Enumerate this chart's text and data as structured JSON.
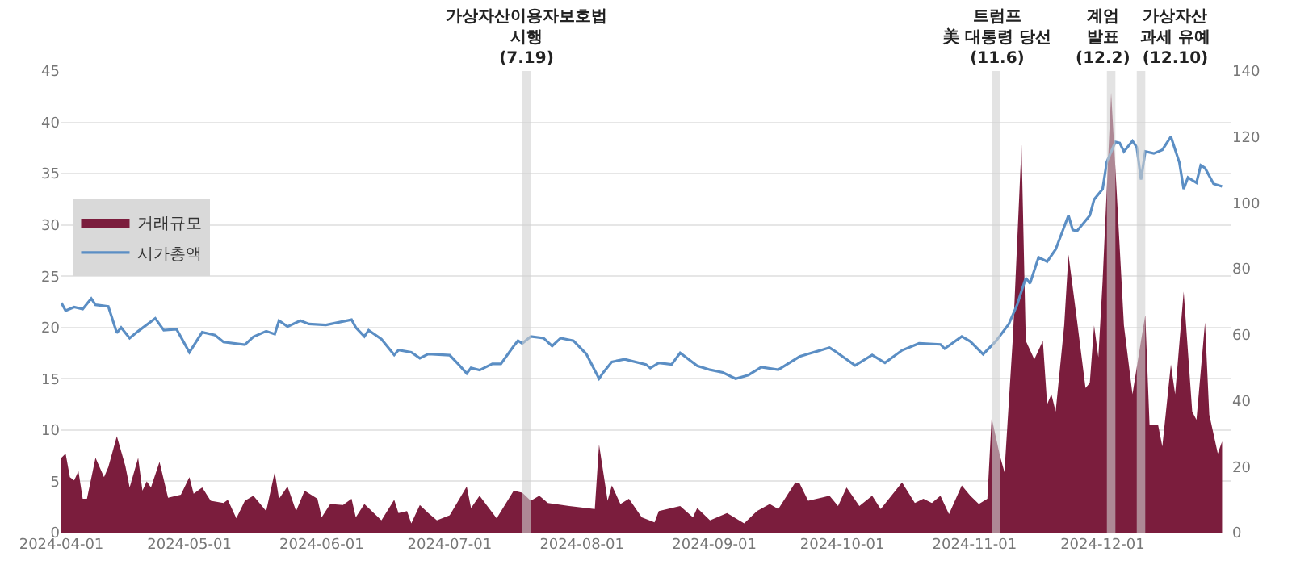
{
  "chart_data": {
    "type": "area",
    "series": [
      {
        "name": "거래규모",
        "color": "#7b1d3d",
        "axis": "y",
        "x": [
          "2024-04-01",
          "2024-04-02",
          "2024-04-03",
          "2024-04-04",
          "2024-04-05",
          "2024-04-06",
          "2024-04-07",
          "2024-04-09",
          "2024-04-11",
          "2024-04-12",
          "2024-04-14",
          "2024-04-16",
          "2024-04-17",
          "2024-04-19",
          "2024-04-20",
          "2024-04-21",
          "2024-04-22",
          "2024-04-24",
          "2024-04-26",
          "2024-04-29",
          "2024-05-01",
          "2024-05-02",
          "2024-05-04",
          "2024-05-06",
          "2024-05-09",
          "2024-05-10",
          "2024-05-12",
          "2024-05-14",
          "2024-05-16",
          "2024-05-19",
          "2024-05-21",
          "2024-05-22",
          "2024-05-24",
          "2024-05-26",
          "2024-05-28",
          "2024-05-31",
          "2024-06-01",
          "2024-06-03",
          "2024-06-06",
          "2024-06-08",
          "2024-06-09",
          "2024-06-11",
          "2024-06-15",
          "2024-06-18",
          "2024-06-19",
          "2024-06-21",
          "2024-06-22",
          "2024-06-24",
          "2024-06-26",
          "2024-06-28",
          "2024-07-01",
          "2024-07-05",
          "2024-07-06",
          "2024-07-08",
          "2024-07-12",
          "2024-07-16",
          "2024-07-18",
          "2024-07-20",
          "2024-07-22",
          "2024-07-24",
          "2024-07-29",
          "2024-08-04",
          "2024-08-05",
          "2024-08-07",
          "2024-08-08",
          "2024-08-10",
          "2024-08-12",
          "2024-08-15",
          "2024-08-18",
          "2024-08-19",
          "2024-08-24",
          "2024-08-27",
          "2024-08-28",
          "2024-08-31",
          "2024-09-04",
          "2024-09-08",
          "2024-09-11",
          "2024-09-14",
          "2024-09-16",
          "2024-09-20",
          "2024-09-21",
          "2024-09-23",
          "2024-09-28",
          "2024-09-30",
          "2024-10-02",
          "2024-10-05",
          "2024-10-08",
          "2024-10-10",
          "2024-10-15",
          "2024-10-18",
          "2024-10-20",
          "2024-10-22",
          "2024-10-24",
          "2024-10-26",
          "2024-10-29",
          "2024-10-31",
          "2024-11-02",
          "2024-11-04",
          "2024-11-05",
          "2024-11-07",
          "2024-11-08",
          "2024-11-10",
          "2024-11-12",
          "2024-11-13",
          "2024-11-15",
          "2024-11-17",
          "2024-11-18",
          "2024-11-19",
          "2024-11-20",
          "2024-11-22",
          "2024-11-23",
          "2024-11-25",
          "2024-11-27",
          "2024-11-28",
          "2024-11-29",
          "2024-11-30",
          "2024-12-01",
          "2024-12-03",
          "2024-12-04",
          "2024-12-06",
          "2024-12-08",
          "2024-12-09",
          "2024-12-10",
          "2024-12-11",
          "2024-12-12",
          "2024-12-14",
          "2024-12-15",
          "2024-12-17",
          "2024-12-18",
          "2024-12-20",
          "2024-12-22",
          "2024-12-23",
          "2024-12-25",
          "2024-12-26",
          "2024-12-28",
          "2024-12-29"
        ],
        "values": [
          7.3,
          7.7,
          5.4,
          5.1,
          6.0,
          3.3,
          3.3,
          7.3,
          5.4,
          6.4,
          9.4,
          6.5,
          4.4,
          7.3,
          4.1,
          5.0,
          4.4,
          6.9,
          3.4,
          3.7,
          5.4,
          3.8,
          4.4,
          3.1,
          2.9,
          3.2,
          1.4,
          3.1,
          3.6,
          2.1,
          5.9,
          3.3,
          4.5,
          2.1,
          4.1,
          3.3,
          1.5,
          2.8,
          2.7,
          3.3,
          1.5,
          2.8,
          1.2,
          3.2,
          1.9,
          2.1,
          0.9,
          2.7,
          1.9,
          1.2,
          1.7,
          4.5,
          2.4,
          3.6,
          1.4,
          4.1,
          3.9,
          3.1,
          3.6,
          2.9,
          2.6,
          2.3,
          8.6,
          3.1,
          4.6,
          2.8,
          3.3,
          1.5,
          1.0,
          2.1,
          2.6,
          1.5,
          2.4,
          1.2,
          1.9,
          0.9,
          2.1,
          2.8,
          2.3,
          4.9,
          4.8,
          3.1,
          3.6,
          2.6,
          4.4,
          2.6,
          3.6,
          2.3,
          4.9,
          2.9,
          3.3,
          2.9,
          3.6,
          1.8,
          4.6,
          3.6,
          2.8,
          3.3,
          11.2,
          7.4,
          5.9,
          19.2,
          37.8,
          18.7,
          16.9,
          18.7,
          12.5,
          13.5,
          11.8,
          20.2,
          27.1,
          20.7,
          14.1,
          14.6,
          20.2,
          17.1,
          24.5,
          42.9,
          35.5,
          20.2,
          13.5,
          16.1,
          18.7,
          21.2,
          10.5,
          10.5,
          8.4,
          16.4,
          13.5,
          23.5,
          11.8,
          11.0,
          20.5,
          11.5,
          7.7,
          8.9
        ]
      },
      {
        "name": "시가총액",
        "type": "line",
        "color": "#5b8ec4",
        "axis": "y2",
        "x": [
          "2024-04-01",
          "2024-04-02",
          "2024-04-04",
          "2024-04-06",
          "2024-04-08",
          "2024-04-09",
          "2024-04-12",
          "2024-04-14",
          "2024-04-15",
          "2024-04-17",
          "2024-04-19",
          "2024-04-23",
          "2024-04-25",
          "2024-04-28",
          "2024-05-01",
          "2024-05-04",
          "2024-05-07",
          "2024-05-09",
          "2024-05-14",
          "2024-05-16",
          "2024-05-19",
          "2024-05-21",
          "2024-05-22",
          "2024-05-24",
          "2024-05-27",
          "2024-05-29",
          "2024-06-02",
          "2024-06-08",
          "2024-06-09",
          "2024-06-11",
          "2024-06-12",
          "2024-06-15",
          "2024-06-18",
          "2024-06-19",
          "2024-06-22",
          "2024-06-24",
          "2024-06-26",
          "2024-07-01",
          "2024-07-03",
          "2024-07-05",
          "2024-07-06",
          "2024-07-08",
          "2024-07-11",
          "2024-07-13",
          "2024-07-16",
          "2024-07-17",
          "2024-07-18",
          "2024-07-20",
          "2024-07-23",
          "2024-07-25",
          "2024-07-27",
          "2024-07-30",
          "2024-08-02",
          "2024-08-05",
          "2024-08-06",
          "2024-08-08",
          "2024-08-11",
          "2024-08-16",
          "2024-08-17",
          "2024-08-19",
          "2024-08-22",
          "2024-08-24",
          "2024-08-28",
          "2024-08-31",
          "2024-09-03",
          "2024-09-06",
          "2024-09-09",
          "2024-09-12",
          "2024-09-16",
          "2024-09-21",
          "2024-09-23",
          "2024-09-28",
          "2024-09-29",
          "2024-10-04",
          "2024-10-08",
          "2024-10-11",
          "2024-10-15",
          "2024-10-19",
          "2024-10-24",
          "2024-10-25",
          "2024-10-29",
          "2024-10-31",
          "2024-11-03",
          "2024-11-06",
          "2024-11-09",
          "2024-11-11",
          "2024-11-13",
          "2024-11-14",
          "2024-11-16",
          "2024-11-18",
          "2024-11-20",
          "2024-11-23",
          "2024-11-24",
          "2024-11-25",
          "2024-11-28",
          "2024-11-29",
          "2024-12-01",
          "2024-12-02",
          "2024-12-04",
          "2024-12-05",
          "2024-12-06",
          "2024-12-08",
          "2024-12-09",
          "2024-12-10",
          "2024-12-11",
          "2024-12-13",
          "2024-12-15",
          "2024-12-17",
          "2024-12-19",
          "2024-12-20",
          "2024-12-21",
          "2024-12-23",
          "2024-12-24",
          "2024-12-25",
          "2024-12-27",
          "2024-12-29"
        ],
        "values": [
          69.7,
          67.3,
          68.4,
          67.8,
          71.0,
          69.1,
          68.6,
          60.6,
          62.2,
          59.0,
          61.1,
          65.0,
          61.4,
          61.7,
          54.7,
          60.8,
          59.9,
          57.8,
          57.0,
          59.4,
          61.1,
          60.2,
          64.3,
          62.5,
          64.3,
          63.3,
          63.0,
          64.6,
          62.2,
          59.5,
          61.4,
          58.7,
          53.9,
          55.4,
          54.7,
          52.9,
          54.2,
          53.8,
          51.1,
          48.3,
          50.0,
          49.3,
          51.2,
          51.2,
          56.6,
          58.2,
          57.4,
          59.5,
          59.0,
          56.6,
          59.0,
          58.2,
          54.2,
          46.7,
          48.6,
          51.8,
          52.6,
          51.0,
          49.9,
          51.5,
          51.0,
          54.5,
          50.6,
          49.4,
          48.6,
          46.7,
          47.8,
          50.2,
          49.4,
          53.4,
          54.2,
          56.1,
          55.3,
          50.7,
          53.9,
          51.5,
          55.3,
          57.4,
          57.1,
          55.8,
          59.5,
          58.0,
          54.1,
          58.1,
          63.2,
          69.2,
          77.2,
          75.6,
          83.5,
          82.2,
          85.9,
          96.2,
          91.8,
          91.5,
          96.2,
          101.0,
          104.2,
          112.5,
          118.5,
          118.2,
          115.6,
          118.8,
          116.9,
          107.1,
          115.6,
          115.0,
          116.1,
          120.1,
          112.2,
          104.2,
          107.7,
          106.1,
          111.4,
          110.6,
          105.8,
          105.0
        ]
      }
    ],
    "xlim": [
      "2024-04-01",
      "2024-12-31"
    ],
    "xticks": [
      "2024-04-01",
      "2024-05-01",
      "2024-06-01",
      "2024-07-01",
      "2024-08-01",
      "2024-09-01",
      "2024-10-01",
      "2024-11-01",
      "2024-12-01"
    ],
    "ylim": [
      0,
      45
    ],
    "yticks": [
      0,
      5,
      10,
      15,
      20,
      25,
      30,
      35,
      40,
      45
    ],
    "y2lim": [
      0,
      140
    ],
    "y2ticks": [
      0,
      20,
      40,
      60,
      80,
      100,
      120,
      140
    ],
    "bands": [
      {
        "axis": "x",
        "from": "2024-07-18",
        "to": "2024-07-20",
        "label": "가상자산이용자보호법\n시행\n(7.19)",
        "color": "#d0d0d0"
      },
      {
        "axis": "x",
        "from": "2024-11-05",
        "to": "2024-11-07",
        "label": "트럼프\n美 대통령 당선\n(11.6)",
        "color": "#d0d0d0"
      },
      {
        "axis": "x",
        "from": "2024-12-02",
        "to": "2024-12-04",
        "label": "계엄\n발표\n(12.2)",
        "color": "#d0d0d0"
      },
      {
        "axis": "x",
        "from": "2024-12-09",
        "to": "2024-12-11",
        "label": "가상자산\n과세 유예\n(12.10)",
        "color": "#d0d0d0"
      }
    ],
    "grid": "y",
    "legend": "left",
    "marker": "none",
    "line_style": "solid"
  }
}
